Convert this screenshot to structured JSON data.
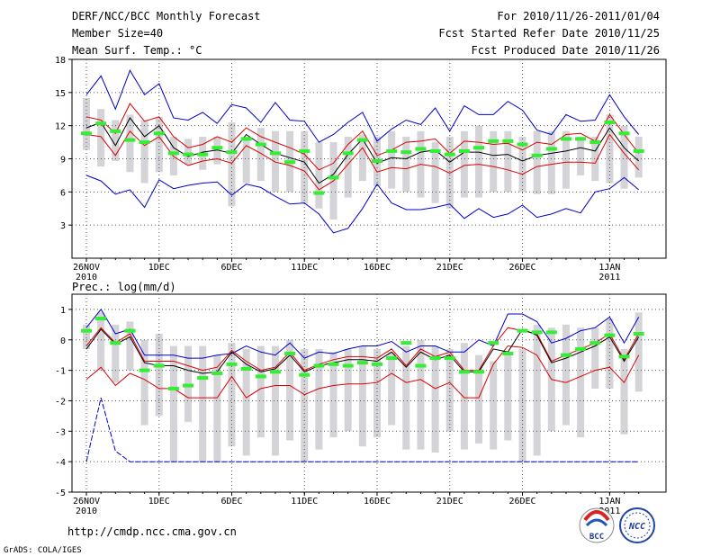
{
  "header": {
    "title_left": "DERF/NCC/BCC Monthly Forecast",
    "member_size": "Member Size=40",
    "panel1_label": "Mean Surf. Temp.: °C",
    "title_right": "For 2010/11/26-2011/01/04",
    "started": "Fcst Started Refer Date 2010/11/25",
    "produced": "Fcst Produced Date 2010/11/26"
  },
  "footer": {
    "url": "http://cmdp.ncc.cma.gov.cn",
    "grads": "GrADS: COLA/IGES",
    "logo_bcc": "BCC",
    "logo_ncc": "NCC"
  },
  "colors": {
    "box": "#d3d3d8",
    "max_min": "#0000cc",
    "spread": "#dd0000",
    "mean": "#000000",
    "median": "#33ee33",
    "grid": "#555555"
  },
  "chart_data": [
    {
      "id": "temp",
      "type": "line",
      "title": "Mean Surf. Temp.: °C",
      "ylim": [
        0,
        18
      ],
      "yticks": [
        "3",
        "6",
        "9",
        "12",
        "15",
        "18"
      ],
      "ytick_values": [
        3,
        6,
        9,
        12,
        15,
        18
      ],
      "x_tick_days": [
        0,
        5,
        10,
        15,
        20,
        25,
        30,
        36
      ],
      "x_tick_labels": [
        "26NOV",
        "1DEC",
        "6DEC",
        "11DEC",
        "16DEC",
        "21DEC",
        "26DEC",
        "1JAN"
      ],
      "x_tick_sublabels": [
        "2010",
        "",
        "",
        "",
        "",
        "",
        "",
        "2011"
      ],
      "series": [
        {
          "name": "max",
          "values": [
            14.8,
            16.5,
            13.5,
            17,
            14.8,
            15.8,
            12.7,
            12.5,
            13.2,
            12.2,
            13.9,
            13.6,
            12.3,
            14.1,
            12.5,
            12.4,
            10.5,
            11.2,
            12.3,
            13.2,
            10.6,
            11.7,
            12.5,
            12.1,
            13.6,
            11.5,
            13.8,
            13.0,
            13.0,
            14.2,
            13.4,
            11.6,
            11.2,
            13.0,
            12.4,
            12.5,
            14.8,
            12.8,
            11.2
          ]
        },
        {
          "name": "upper",
          "values": [
            12.8,
            12.5,
            11.3,
            14.0,
            12.4,
            12.8,
            11.0,
            10.0,
            10.3,
            11.0,
            10.5,
            11.8,
            11.0,
            10.5,
            10.0,
            9.4,
            8.0,
            8.6,
            10.3,
            11.5,
            9.3,
            9.8,
            10.5,
            10.6,
            10.8,
            9.5,
            10.6,
            10.5,
            10.3,
            10.4,
            9.8,
            10.5,
            10.3,
            11.2,
            11.3,
            10.6,
            13.0,
            11.2,
            9.5
          ]
        },
        {
          "name": "mean",
          "values": [
            11.8,
            12.3,
            10.2,
            12.7,
            11.0,
            12.0,
            10.0,
            9.2,
            9.6,
            9.8,
            9.5,
            11.2,
            10.3,
            9.5,
            9.1,
            8.7,
            6.8,
            7.6,
            9.4,
            10.8,
            8.6,
            9.1,
            9.0,
            9.6,
            9.8,
            8.7,
            9.6,
            9.6,
            9.3,
            9.4,
            8.8,
            9.3,
            9.5,
            9.7,
            10.0,
            9.7,
            11.8,
            10.0,
            8.8
          ]
        },
        {
          "name": "lower",
          "values": [
            11.2,
            11.0,
            9.3,
            11.5,
            10.2,
            11.0,
            9.2,
            8.4,
            8.8,
            9.0,
            8.6,
            10.2,
            9.5,
            8.7,
            8.4,
            7.9,
            6.2,
            7.0,
            8.5,
            10.0,
            7.8,
            8.2,
            8.1,
            8.5,
            8.3,
            7.7,
            8.4,
            8.5,
            8.3,
            8.0,
            7.6,
            8.3,
            8.5,
            8.7,
            8.7,
            8.6,
            11.2,
            9.5,
            8.0
          ]
        },
        {
          "name": "min",
          "values": [
            7.5,
            7.0,
            5.8,
            6.2,
            4.6,
            7.1,
            6.3,
            6.6,
            6.8,
            6.9,
            5.7,
            6.7,
            6.4,
            5.6,
            4.9,
            5.0,
            4.0,
            2.3,
            2.7,
            4.5,
            6.7,
            5.0,
            4.4,
            4.4,
            4.6,
            4.9,
            3.6,
            4.5,
            3.7,
            4.0,
            4.8,
            3.7,
            4.0,
            4.5,
            4.1,
            6.0,
            6.3,
            7.3,
            6.2
          ]
        },
        {
          "name": "median",
          "values": [
            11.3,
            12.2,
            11.5,
            10.7,
            10.5,
            11.3,
            9.5,
            9.4,
            9.4,
            10.0,
            9.6,
            10.8,
            10.3,
            9.5,
            8.7,
            9.7,
            5.9,
            7.3,
            9.5,
            10.7,
            8.8,
            9.7,
            9.6,
            9.9,
            9.7,
            9.4,
            9.7,
            10.0,
            10.6,
            10.6,
            10.3,
            9.3,
            9.9,
            10.8,
            10.8,
            10.5,
            12.3,
            11.3,
            9.7
          ]
        },
        {
          "name": "box_top",
          "values": [
            14.5,
            13.5,
            12.5,
            13.0,
            12.5,
            12.8,
            11.0,
            10.8,
            11.0,
            11.0,
            12.3,
            11.0,
            11.8,
            11.5,
            11.5,
            11.5,
            10.5,
            10.5,
            11.0,
            11.2,
            11.0,
            11.5,
            11.0,
            11.5,
            10.5,
            11.0,
            11.5,
            12.0,
            11.5,
            11.5,
            11.0,
            11.5,
            11.5,
            11.5,
            11.0,
            11.0,
            13.0,
            12.0,
            11.0
          ]
        },
        {
          "name": "box_bottom",
          "values": [
            9.8,
            8.3,
            8.8,
            7.8,
            6.8,
            7.8,
            7.5,
            8.5,
            8.0,
            8.5,
            4.7,
            6.8,
            7.0,
            6.0,
            6.0,
            5.0,
            4.5,
            3.5,
            5.5,
            7.0,
            6.5,
            6.3,
            6.0,
            5.5,
            5.0,
            4.5,
            5.5,
            5.5,
            6.0,
            6.0,
            6.0,
            5.8,
            5.8,
            6.3,
            7.5,
            7.0,
            6.8,
            6.3,
            7.3
          ]
        }
      ]
    },
    {
      "id": "prec",
      "type": "line",
      "title": "Prec.: log(mm/d)",
      "ylim": [
        -5,
        1.5
      ],
      "yticks": [
        "-5",
        "-4",
        "-3",
        "-2",
        "-1",
        "0",
        "1"
      ],
      "ytick_values": [
        -5,
        -4,
        -3,
        -2,
        -1,
        0,
        1
      ],
      "x_tick_days": [
        0,
        5,
        10,
        15,
        20,
        25,
        30,
        36
      ],
      "x_tick_labels": [
        "26NOV",
        "1DEC",
        "6DEC",
        "11DEC",
        "16DEC",
        "21DEC",
        "26DEC",
        "1JAN"
      ],
      "x_tick_sublabels": [
        "2010",
        "",
        "",
        "",
        "",
        "",
        "",
        "2011"
      ],
      "series": [
        {
          "name": "max",
          "values": [
            0.4,
            1.0,
            0.2,
            0.35,
            -0.5,
            -0.5,
            -0.5,
            -0.6,
            -0.6,
            -0.5,
            -0.45,
            -0.2,
            -0.4,
            -0.5,
            -0.1,
            -0.6,
            -0.4,
            -0.45,
            -0.3,
            -0.2,
            -0.2,
            -0.05,
            -0.4,
            -0.2,
            -0.2,
            -0.4,
            -0.4,
            0.0,
            -0.2,
            0.85,
            0.85,
            0.6,
            -0.1,
            0.05,
            0.3,
            0.4,
            0.75,
            -0.1,
            0.75
          ]
        },
        {
          "name": "upper",
          "values": [
            -0.2,
            0.4,
            -0.1,
            0.2,
            -0.7,
            -0.7,
            -0.7,
            -0.85,
            -1.0,
            -0.9,
            -0.35,
            -0.7,
            -1.0,
            -0.9,
            -0.4,
            -1.0,
            -0.8,
            -0.65,
            -0.55,
            -0.55,
            -0.6,
            -0.3,
            -0.85,
            -0.3,
            -0.55,
            -0.4,
            -1.0,
            -1.0,
            -0.2,
            0.4,
            0.3,
            0.2,
            -0.7,
            -0.5,
            -0.3,
            -0.1,
            0.2,
            -0.65,
            0.2
          ]
        },
        {
          "name": "mean",
          "values": [
            -0.3,
            0.35,
            -0.15,
            0.1,
            -0.75,
            -0.85,
            -0.85,
            -1.0,
            -1.1,
            -1.05,
            -0.4,
            -0.8,
            -1.05,
            -0.95,
            -0.5,
            -1.05,
            -0.85,
            -0.75,
            -0.65,
            -0.65,
            -0.7,
            -0.4,
            -0.9,
            -0.4,
            -0.65,
            -0.5,
            -1.05,
            -1.05,
            -0.3,
            -0.4,
            0.35,
            0.15,
            -0.75,
            -0.6,
            -0.4,
            -0.2,
            0.1,
            -0.7,
            0.1
          ]
        },
        {
          "name": "lower",
          "values": [
            -1.3,
            -0.9,
            -1.5,
            -1.1,
            -1.3,
            -1.6,
            -1.6,
            -1.9,
            -1.9,
            -1.9,
            -1.2,
            -1.9,
            -1.6,
            -1.5,
            -1.5,
            -1.8,
            -1.6,
            -1.5,
            -1.45,
            -1.45,
            -1.4,
            -1.1,
            -1.4,
            -1.3,
            -1.6,
            -1.4,
            -1.9,
            -1.9,
            -0.8,
            -0.2,
            -0.25,
            -0.5,
            -1.3,
            -1.4,
            -1.2,
            -1.0,
            -0.9,
            -1.4,
            -0.5
          ]
        },
        {
          "name": "min",
          "values": [
            -4.0,
            -1.9,
            -3.65,
            -4.0,
            -4.0,
            -4.0,
            -4.0,
            -4.0,
            -4.0,
            -4.0,
            -4.0,
            -4.0,
            -4.0,
            -4.0,
            -4.0,
            -4.0,
            -4.0,
            -4.0,
            -4.0,
            -4.0,
            -4.0,
            -4.0,
            -4.0,
            -4.0,
            -4.0,
            -4.0,
            -4.0,
            -4.0,
            -4.0,
            -4.0,
            -4.0,
            -4.0,
            -4.0,
            -4.0,
            -4.0,
            -4.0,
            -4.0,
            -4.0,
            -4.0
          ]
        },
        {
          "name": "median",
          "values": [
            0.3,
            0.7,
            -0.1,
            0.3,
            -1.0,
            -0.85,
            -1.6,
            -1.5,
            -1.25,
            -1.1,
            -0.8,
            -0.95,
            -1.2,
            -1.05,
            -0.45,
            -1.15,
            -0.85,
            -0.8,
            -0.85,
            -0.75,
            -0.8,
            -0.6,
            -0.1,
            -0.85,
            -0.6,
            -0.6,
            -1.05,
            -1.05,
            -0.1,
            -0.45,
            0.3,
            0.25,
            0.25,
            -0.5,
            -0.3,
            -0.1,
            0.15,
            -0.55,
            0.2
          ]
        },
        {
          "name": "box_top",
          "values": [
            0.5,
            0.9,
            0.5,
            0.6,
            0.0,
            0.2,
            -0.2,
            -0.2,
            -0.2,
            -0.5,
            -0.1,
            -0.3,
            -0.2,
            -0.2,
            0.0,
            -0.3,
            -0.3,
            -0.4,
            -0.3,
            -0.2,
            -0.3,
            -0.4,
            -0.2,
            0.0,
            -0.2,
            -0.3,
            -0.1,
            -0.5,
            -0.7,
            -0.4,
            -0.3,
            0.5,
            0.4,
            0.5,
            0.4,
            0.4,
            0.7,
            -0.3,
            0.9
          ]
        },
        {
          "name": "box_bottom",
          "values": [
            -0.3,
            -1.0,
            -1.4,
            -1.0,
            -2.8,
            -2.5,
            -4.0,
            -2.7,
            -4.0,
            -4.0,
            -3.5,
            -3.8,
            -3.2,
            -3.8,
            -3.3,
            -4.0,
            -3.6,
            -3.2,
            -3.0,
            -3.5,
            -3.2,
            -2.8,
            -3.6,
            -3.6,
            -3.7,
            -3.0,
            -3.6,
            -3.4,
            -3.6,
            -3.3,
            -4.0,
            -3.8,
            -3.0,
            -2.8,
            -3.2,
            -1.6,
            -1.6,
            -3.1,
            -1.7
          ]
        }
      ]
    }
  ]
}
